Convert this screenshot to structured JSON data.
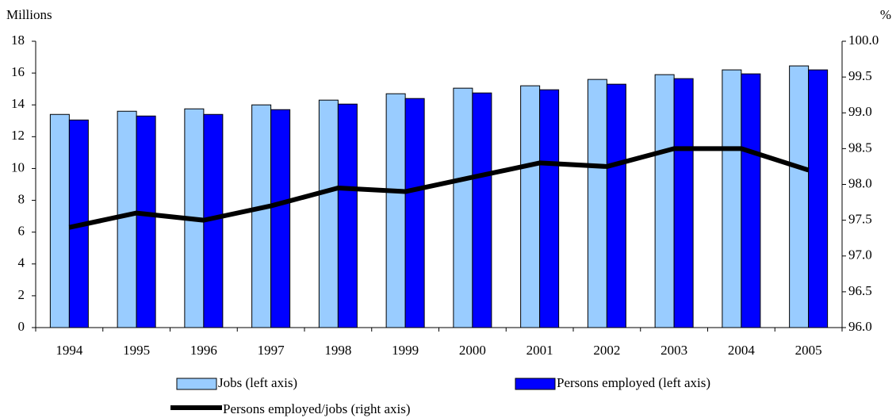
{
  "chart_data": {
    "type": "bar_line",
    "y_label": "Millions",
    "y2_label": "%",
    "categories": [
      "1994",
      "1995",
      "1996",
      "1997",
      "1998",
      "1999",
      "2000",
      "2001",
      "2002",
      "2003",
      "2004",
      "2005"
    ],
    "series": [
      {
        "name": "Jobs (left axis)",
        "color": "#99ccff",
        "type": "bar",
        "values": [
          13.4,
          13.6,
          13.75,
          14.0,
          14.3,
          14.7,
          15.05,
          15.2,
          15.6,
          15.9,
          16.2,
          16.45
        ]
      },
      {
        "name": "Persons employed (left axis)",
        "color": "#0000ff",
        "type": "bar",
        "values": [
          13.05,
          13.3,
          13.4,
          13.7,
          14.05,
          14.4,
          14.75,
          14.95,
          15.3,
          15.65,
          15.95,
          16.2
        ]
      },
      {
        "name": "Persons employed/jobs (right axis)",
        "color": "#000000",
        "type": "line",
        "axis": "y2",
        "values": [
          97.4,
          97.6,
          97.5,
          97.7,
          97.95,
          97.9,
          98.1,
          98.3,
          98.25,
          98.5,
          98.5,
          98.2
        ]
      }
    ],
    "ylim": [
      0,
      18
    ],
    "yticks": [
      0,
      2,
      4,
      6,
      8,
      10,
      12,
      14,
      16,
      18
    ],
    "y2lim": [
      96,
      100
    ],
    "y2ticks": [
      {
        "value": 96,
        "label": "96.0"
      },
      96.5,
      {
        "value": 97,
        "label": "97.0"
      },
      97.5,
      {
        "value": 98,
        "label": "98.0"
      },
      98.5,
      {
        "value": 99,
        "label": "99.0"
      },
      99.5,
      {
        "value": 100,
        "label": "100.0"
      }
    ],
    "grid": false
  }
}
